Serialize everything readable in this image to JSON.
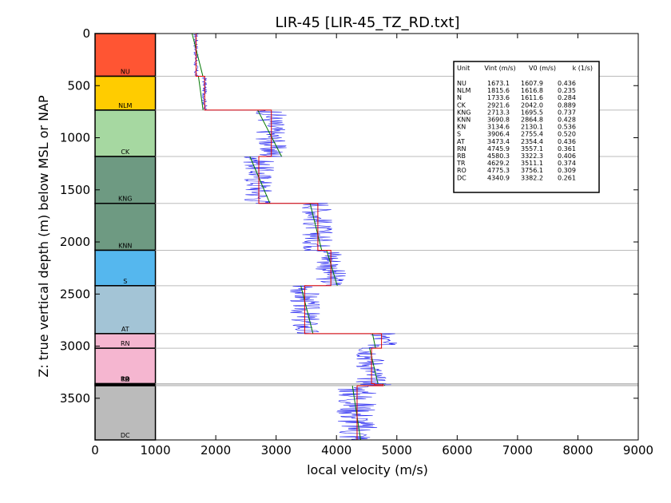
{
  "chart_data": {
    "type": "line",
    "title": "LIR-45 [LIR-45_TZ_RD.txt]",
    "xlabel": "local velocity (m/s)",
    "ylabel": "Z: true vertical depth (m) below MSL or NAP",
    "xlim": [
      0,
      9000
    ],
    "ylim": [
      0,
      3900
    ],
    "y_inverted": true,
    "x_ticks": [
      "0",
      "1000",
      "2000",
      "3000",
      "4000",
      "5000",
      "6000",
      "7000",
      "8000",
      "9000"
    ],
    "y_ticks": [
      "0",
      "500",
      "1000",
      "1500",
      "2000",
      "2500",
      "3000",
      "3500"
    ],
    "units": [
      {
        "name": "NU",
        "top": 0,
        "base": 410,
        "color": "#ff5533",
        "vint": 1673.1,
        "v0": 1607.9,
        "k": 0.436
      },
      {
        "name": "NLM",
        "top": 410,
        "base": 735,
        "color": "#ffcc00",
        "vint": 1815.6,
        "v0": 1616.8,
        "k": 0.235
      },
      {
        "name": "N",
        "top": 410,
        "base": 735,
        "color": "#ffcc00",
        "vint": 1733.6,
        "v0": 1611.6,
        "k": 0.284,
        "hidden": true
      },
      {
        "name": "CK",
        "top": 735,
        "base": 1180,
        "color": "#a6d8a1",
        "vint": 2921.6,
        "v0": 2042.0,
        "k": 0.889
      },
      {
        "name": "KNG",
        "top": 1180,
        "base": 1630,
        "color": "#6e9a82",
        "vint": 2713.3,
        "v0": 1695.5,
        "k": 0.737
      },
      {
        "name": "KNN",
        "top": 1630,
        "base": 2080,
        "color": "#6e9a82",
        "vint": 3690.8,
        "v0": 2864.8,
        "k": 0.428
      },
      {
        "name": "KN",
        "top": 1180,
        "base": 2080,
        "color": "#6e9a82",
        "vint": 3134.6,
        "v0": 2130.1,
        "k": 0.536,
        "hidden": true
      },
      {
        "name": "S",
        "top": 2080,
        "base": 2420,
        "color": "#55b7ee",
        "vint": 3906.4,
        "v0": 2755.4,
        "k": 0.52
      },
      {
        "name": "AT",
        "top": 2420,
        "base": 2880,
        "color": "#a3c4d6",
        "vint": 3473.4,
        "v0": 2354.4,
        "k": 0.436
      },
      {
        "name": "RN",
        "top": 2880,
        "base": 3020,
        "color": "#f5b6d0",
        "vint": 4745.9,
        "v0": 3557.1,
        "k": 0.361
      },
      {
        "name": "RB",
        "top": 3020,
        "base": 3360,
        "color": "#f5b6d0",
        "vint": 4580.3,
        "v0": 3322.3,
        "k": 0.406
      },
      {
        "name": "TR",
        "top": 3360,
        "base": 3370,
        "color": "#f0a0c0",
        "vint": 4629.2,
        "v0": 3511.1,
        "k": 0.374
      },
      {
        "name": "RO",
        "top": 3370,
        "base": 3380,
        "color": "#cccccc",
        "vint": 4775.3,
        "v0": 3756.1,
        "k": 0.309
      },
      {
        "name": "DC",
        "top": 3380,
        "base": 3900,
        "color": "#bbbbbb",
        "vint": 4340.9,
        "v0": 3382.2,
        "k": 0.261
      }
    ],
    "column_labels": [
      "NU",
      "NLM",
      "CK",
      "KNG",
      "KNN",
      "S",
      "AT",
      "RN",
      "RO",
      "RB",
      "TR",
      "DC"
    ],
    "legend": {
      "placement": "top-right",
      "header": [
        "Unit",
        "Vint (m/s)",
        "V0 (m/s)",
        "k (1/s)"
      ],
      "rows": [
        [
          "NU",
          "1673.1",
          "1607.9",
          "0.436"
        ],
        [
          "NLM",
          "1815.6",
          "1616.8",
          "0.235"
        ],
        [
          "N",
          "1733.6",
          "1611.6",
          "0.284"
        ],
        [
          "CK",
          "2921.6",
          "2042.0",
          "0.889"
        ],
        [
          "KNG",
          "2713.3",
          "1695.5",
          "0.737"
        ],
        [
          "KNN",
          "3690.8",
          "2864.8",
          "0.428"
        ],
        [
          "KN",
          "3134.6",
          "2130.1",
          "0.536"
        ],
        [
          "S",
          "3906.4",
          "2755.4",
          "0.520"
        ],
        [
          "AT",
          "3473.4",
          "2354.4",
          "0.436"
        ],
        [
          "RN",
          "4745.9",
          "3557.1",
          "0.361"
        ],
        [
          "RB",
          "4580.3",
          "3322.3",
          "0.406"
        ],
        [
          "TR",
          "4629.2",
          "3511.1",
          "0.374"
        ],
        [
          "RO",
          "4775.3",
          "3756.1",
          "0.309"
        ],
        [
          "DC",
          "4340.9",
          "3382.2",
          "0.261"
        ]
      ]
    },
    "series_colors": {
      "interval": "#dd0000",
      "v0k": "#007700",
      "measured": "#0000ee"
    }
  }
}
